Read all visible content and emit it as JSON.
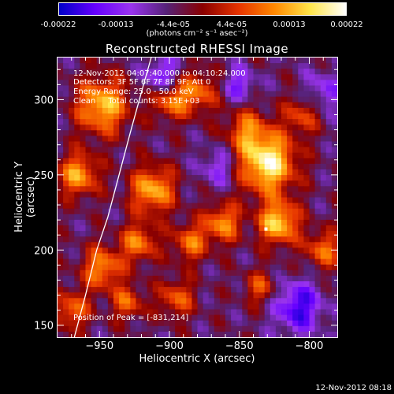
{
  "colorbar": {
    "ticks": [
      "-0.00022",
      "-0.00013",
      "-4.4e-05",
      "4.4e-05",
      "0.00013",
      "0.00022"
    ],
    "units": "(photons cm⁻² s⁻¹ asec⁻²)",
    "range": [
      -0.00022,
      0.00022
    ],
    "colors": [
      "#0000c8",
      "#6600ff",
      "#9933ee",
      "#552277",
      "#8a0000",
      "#e63300",
      "#ff8800",
      "#ffe54a",
      "#ffffff"
    ]
  },
  "annotations": {
    "line1": "12-Nov-2012 04:07:40.000 to 04:10:24.000",
    "line2": "Detectors: 3F 5F 6F 7F 8F 9F; Att 0",
    "line3": "Energy Range: 25.0 - 50.0 keV",
    "line4": "Clean     Total counts: 3.15E+03",
    "peak": "Position of Peak = [-831,214]"
  },
  "timestamp": "12-Nov-2012 08:18",
  "chart_data": {
    "type": "heatmap",
    "title": "Reconstructed RHESSI Image",
    "xlabel": "Heliocentric X (arcsec)",
    "ylabel": "Heliocentric Y (arcsec)",
    "xlim": [
      -980,
      -780
    ],
    "ylim": [
      142,
      328
    ],
    "xticks": [
      -950,
      -900,
      -850,
      -800
    ],
    "yticks": [
      150,
      200,
      250,
      300
    ],
    "xtick_labels": [
      "−950",
      "−900",
      "−850",
      "−800"
    ],
    "ytick_labels": [
      "150",
      "200",
      "250",
      "300"
    ],
    "peak": [
      -831,
      214
    ],
    "limb": [
      [
        -968,
        142
      ],
      [
        -960,
        170
      ],
      [
        -952,
        200
      ],
      [
        -944,
        222
      ],
      [
        -936,
        250
      ],
      [
        -928,
        278
      ],
      [
        -920,
        305
      ],
      [
        -913,
        328
      ]
    ],
    "sources": [
      {
        "x": -830,
        "y": 258,
        "s": 14,
        "a": 1.0
      },
      {
        "x": -822,
        "y": 218,
        "s": 10,
        "a": 0.85
      },
      {
        "x": -948,
        "y": 296,
        "s": 13,
        "a": 0.8
      },
      {
        "x": -965,
        "y": 250,
        "s": 10,
        "a": 0.7
      },
      {
        "x": -912,
        "y": 240,
        "s": 11,
        "a": 0.75
      },
      {
        "x": -900,
        "y": 300,
        "s": 9,
        "a": 0.6
      },
      {
        "x": -862,
        "y": 218,
        "s": 9,
        "a": 0.65
      },
      {
        "x": -880,
        "y": 305,
        "s": 10,
        "a": 0.55
      },
      {
        "x": -948,
        "y": 188,
        "s": 10,
        "a": 0.65
      },
      {
        "x": -922,
        "y": 205,
        "s": 9,
        "a": 0.6
      },
      {
        "x": -885,
        "y": 205,
        "s": 9,
        "a": 0.55
      },
      {
        "x": -845,
        "y": 280,
        "s": 10,
        "a": 0.5
      },
      {
        "x": -790,
        "y": 200,
        "s": 9,
        "a": 0.55
      },
      {
        "x": -895,
        "y": 168,
        "s": 9,
        "a": 0.5
      },
      {
        "x": -835,
        "y": 175,
        "s": 8,
        "a": 0.45
      },
      {
        "x": -970,
        "y": 160,
        "s": 9,
        "a": 0.55
      },
      {
        "x": -930,
        "y": 165,
        "s": 8,
        "a": 0.5
      },
      {
        "x": -805,
        "y": 290,
        "s": 9,
        "a": 0.45
      },
      {
        "x": -808,
        "y": 162,
        "s": -12,
        "a": 0.6
      },
      {
        "x": -905,
        "y": 315,
        "s": -9,
        "a": 0.5
      },
      {
        "x": -850,
        "y": 310,
        "s": -8,
        "a": 0.4
      },
      {
        "x": -865,
        "y": 255,
        "s": -9,
        "a": 0.35
      },
      {
        "x": -790,
        "y": 305,
        "s": -10,
        "a": 0.35
      }
    ]
  }
}
